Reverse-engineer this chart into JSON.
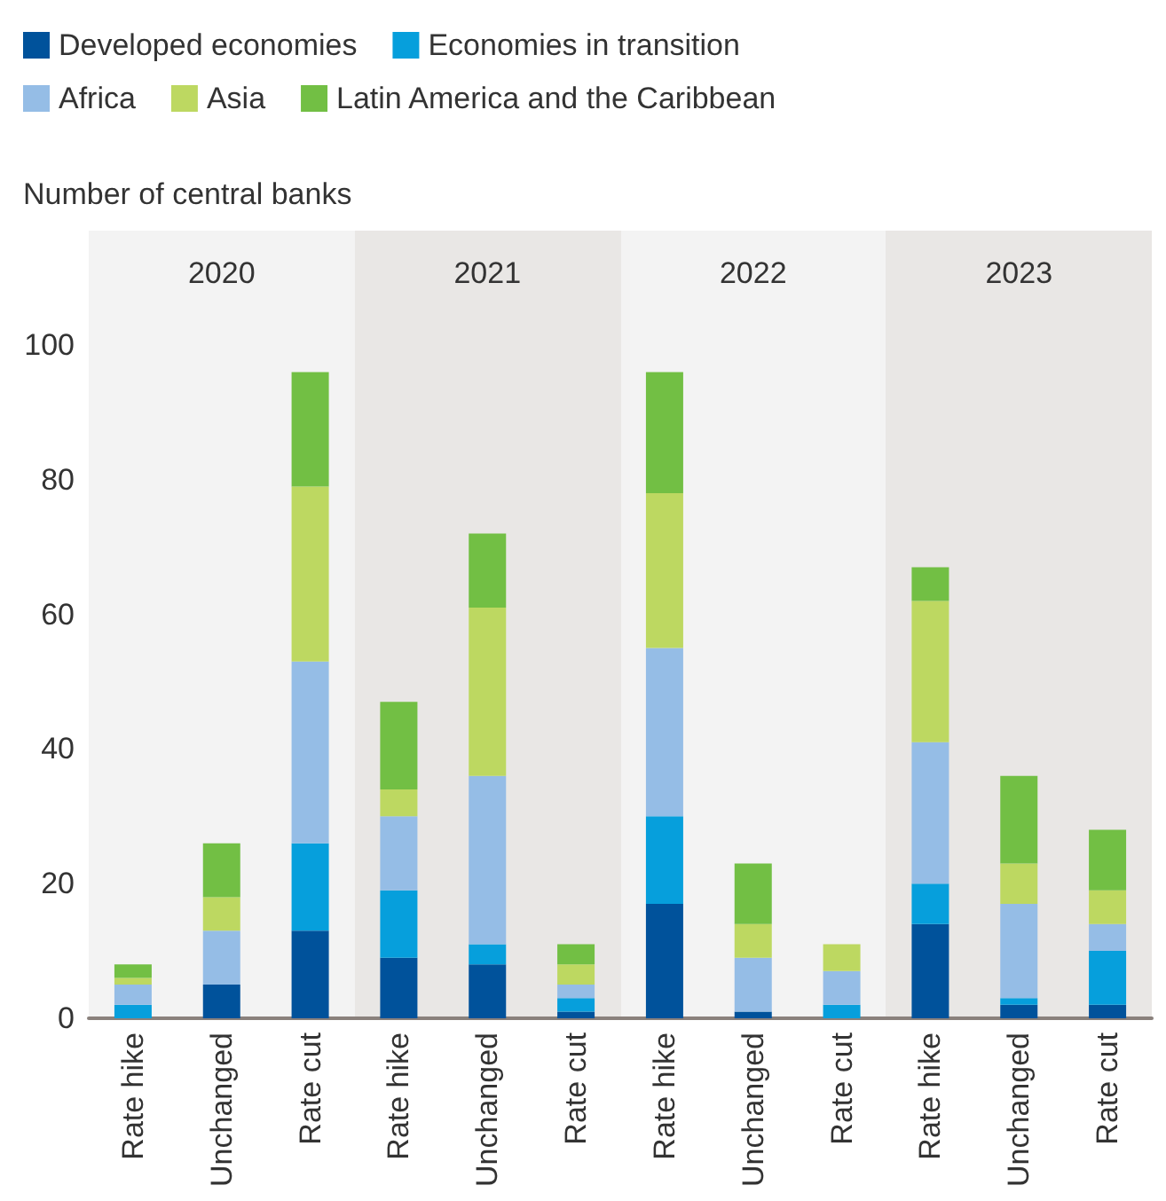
{
  "chart_data": {
    "type": "bar",
    "stacked": true,
    "ylabel": "Number of central banks",
    "categories": [
      "Rate hike",
      "Unchanged",
      "Rate cut",
      "Rate hike",
      "Unchanged",
      "Rate cut",
      "Rate hike",
      "Unchanged",
      "Rate cut",
      "Rate hike",
      "Unchanged",
      "Rate cut"
    ],
    "series": [
      {
        "name": "Developed economies",
        "color": "#00529b",
        "values": [
          0,
          5,
          13,
          9,
          8,
          1,
          17,
          1,
          0,
          14,
          2,
          2
        ]
      },
      {
        "name": "Economies in transition",
        "color": "#069fdc",
        "values": [
          2,
          0,
          13,
          10,
          3,
          2,
          13,
          0,
          2,
          6,
          1,
          8
        ]
      },
      {
        "name": "Africa",
        "color": "#95bde6",
        "values": [
          3,
          8,
          27,
          11,
          25,
          2,
          25,
          8,
          5,
          21,
          14,
          4
        ]
      },
      {
        "name": "Asia",
        "color": "#bdd861",
        "values": [
          1,
          5,
          26,
          4,
          25,
          3,
          23,
          5,
          4,
          21,
          6,
          5
        ]
      },
      {
        "name": "Latin America and the Caribbean",
        "color": "#72bf44",
        "values": [
          2,
          8,
          17,
          13,
          11,
          3,
          18,
          9,
          0,
          5,
          13,
          9
        ]
      }
    ],
    "annotations": [
      "2020",
      "2021",
      "2022",
      "2023"
    ],
    "ylim": [
      0,
      117
    ],
    "yticks": [
      0,
      20,
      40,
      60,
      80,
      100
    ],
    "grid": false,
    "legend": "top left"
  }
}
